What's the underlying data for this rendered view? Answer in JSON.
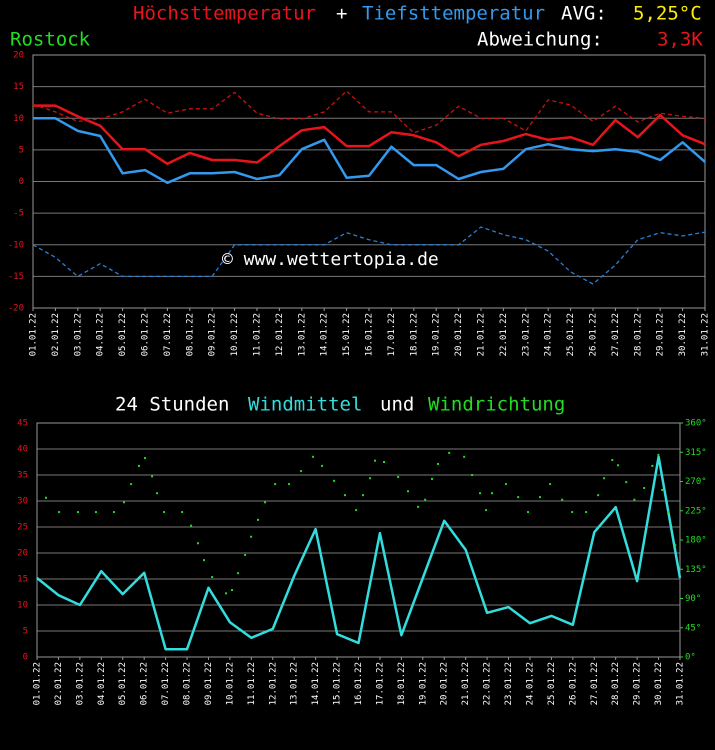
{
  "chart_data": [
    {
      "type": "line",
      "title": [
        "Höchsttemperatur",
        "+",
        "Tiefsttemperatur"
      ],
      "avg_label": "AVG:",
      "avg_value": "5,25°C",
      "location": "Rostock",
      "deviation_label": "Abweichung:",
      "deviation_value": "3,3K",
      "watermark": "© www.wettertopia.de",
      "categories": [
        "01.01.22",
        "02.01.22",
        "03.01.22",
        "04.01.22",
        "05.01.22",
        "06.01.22",
        "07.01.22",
        "08.01.22",
        "09.01.22",
        "10.01.22",
        "11.01.22",
        "12.01.22",
        "13.01.22",
        "14.01.22",
        "15.01.22",
        "16.01.22",
        "17.01.22",
        "18.01.22",
        "19.01.22",
        "20.01.22",
        "21.01.22",
        "22.01.22",
        "23.01.22",
        "24.01.22",
        "25.01.22",
        "26.01.22",
        "27.01.22",
        "28.01.22",
        "29.01.22",
        "30.01.22",
        "31.01.22"
      ],
      "series": [
        {
          "name": "Höchsttemperatur",
          "color": "#e8141c",
          "dashed": false,
          "values": [
            12,
            12,
            10.3,
            8.8,
            5.1,
            5.1,
            2.8,
            4.5,
            3.4,
            3.4,
            3.0,
            5.6,
            8.1,
            8.6,
            5.6,
            5.6,
            7.8,
            7.3,
            6.2,
            4.0,
            5.8,
            6.4,
            7.5,
            6.6,
            7.0,
            5.8,
            9.7,
            7.0,
            10.5,
            7.3,
            5.9
          ]
        },
        {
          "name": "Tiefsttemperatur",
          "color": "#3399ee",
          "dashed": false,
          "values": [
            10.0,
            10.0,
            8.0,
            7.2,
            1.3,
            1.8,
            -0.2,
            1.3,
            1.3,
            1.5,
            0.4,
            1.0,
            5.1,
            6.6,
            0.6,
            0.9,
            5.5,
            2.6,
            2.6,
            0.4,
            1.5,
            2.0,
            5.1,
            5.9,
            5.1,
            4.8,
            5.1,
            4.7,
            3.4,
            6.2,
            3.1
          ]
        },
        {
          "color": "#cc1111",
          "dashed": true,
          "values": [
            12.2,
            11,
            9.5,
            9.9,
            11,
            13,
            10.8,
            11.5,
            11.5,
            14.1,
            10.8,
            9.9,
            9.9,
            11,
            14.3,
            11,
            11,
            7.7,
            8.9,
            11.9,
            10,
            10,
            8.0,
            12.9,
            12.1,
            9.5,
            11.9,
            9.4,
            10.8,
            10.3,
            10
          ]
        },
        {
          "color": "#2a7fd4",
          "dashed": true,
          "values": [
            -10,
            -12,
            -15,
            -13,
            -15,
            -15,
            -15,
            -15,
            -15,
            -10,
            -10,
            -10,
            -10,
            -10,
            -8.1,
            -9.2,
            -10,
            -10,
            -10,
            -10,
            -7.2,
            -8.4,
            -9.2,
            -11,
            -14.3,
            -16.2,
            -13.2,
            -9.2,
            -8.1,
            -8.6,
            -8
          ]
        }
      ],
      "ylim": [
        -20,
        20
      ],
      "yticks": [
        20,
        15,
        10,
        5,
        0,
        -5,
        -10,
        -15,
        -20
      ],
      "grid": true
    },
    {
      "type": "line",
      "title": [
        "24 Stunden",
        "Windmittel",
        "und",
        "Windrichtung"
      ],
      "categories": [
        "01.01.22",
        "02.01.22",
        "03.01.22",
        "04.01.22",
        "05.01.22",
        "06.01.22",
        "07.01.22",
        "08.01.22",
        "09.01.22",
        "10.01.22",
        "11.01.22",
        "12.01.22",
        "13.01.22",
        "14.01.22",
        "15.01.22",
        "16.01.22",
        "17.01.22",
        "18.01.22",
        "19.01.22",
        "20.01.22",
        "21.01.22",
        "22.01.22",
        "23.01.22",
        "24.01.22",
        "25.01.22",
        "26.01.22",
        "27.01.22",
        "28.01.22",
        "29.01.22",
        "30.01.22",
        "31.01.22"
      ],
      "xlim": [
        1,
        31
      ],
      "series": [
        {
          "name": "Windmittel",
          "color": "#33dddd",
          "values": [
            15.2,
            11.9,
            10,
            16.5,
            12.1,
            16.2,
            1.5,
            1.5,
            13.3,
            6.7,
            3.7,
            5.4,
            15.6,
            24.6,
            4.4,
            2.7,
            23.8,
            4.2,
            15.2,
            26.2,
            20.6,
            8.5,
            9.6,
            6.5,
            7.9,
            6.2,
            24,
            28.8,
            14.6,
            38.5,
            15.2
          ]
        },
        {
          "name": "Windrichtung",
          "color": "#22dd22",
          "type": "scatter",
          "axis": "y2",
          "x": [
            1.42,
            2.03,
            2.91,
            3.75,
            4.59,
            5.06,
            5.39,
            5.76,
            6.04,
            6.37,
            6.6,
            6.93,
            7.77,
            8.19,
            8.51,
            8.79,
            9.17,
            9.82,
            10.1,
            10.38,
            10.71,
            10.99,
            11.31,
            11.64,
            12.11,
            12.76,
            13.32,
            13.88,
            14.3,
            14.86,
            15.37,
            15.89,
            16.21,
            16.54,
            16.77,
            17.19,
            17.85,
            18.31,
            18.78,
            19.11,
            19.43,
            19.71,
            20.23,
            20.93,
            21.3,
            21.67,
            21.95,
            22.23,
            22.88,
            23.45,
            23.91,
            24.47,
            24.94,
            25.5,
            25.97,
            26.62,
            27.18,
            27.46,
            27.84,
            28.11,
            28.49,
            28.87,
            29.33,
            29.71,
            29.99,
            30.17,
            30.45,
            30.78
          ],
          "values": [
            245,
            223,
            223,
            223,
            223,
            238,
            266,
            294,
            306,
            278,
            252,
            223,
            223,
            202,
            175,
            149,
            123,
            98,
            103,
            129,
            157,
            185,
            211,
            238,
            266,
            266,
            286,
            308,
            294,
            271,
            249,
            226,
            249,
            275,
            302,
            300,
            277,
            255,
            231,
            242,
            274,
            297,
            314,
            308,
            280,
            252,
            226,
            252,
            266,
            246,
            223,
            246,
            266,
            242,
            223,
            223,
            249,
            275,
            303,
            295,
            269,
            242,
            260,
            294,
            311,
            257,
            223,
            172
          ]
        }
      ],
      "ylim": [
        0,
        45
      ],
      "yticks": [
        45,
        40,
        35,
        30,
        25,
        20,
        15,
        10,
        5,
        0
      ],
      "y2lim": [
        0,
        360
      ],
      "y2ticks": [
        {
          "value": 360,
          "label": "360°"
        },
        {
          "value": 315,
          "label": "315°"
        },
        {
          "value": 270,
          "label": "270°"
        },
        {
          "value": 225,
          "label": "225°"
        },
        {
          "value": 180,
          "label": "180°"
        },
        {
          "value": 135,
          "label": "135°"
        },
        {
          "value": 90,
          "label": "90°"
        },
        {
          "value": 45,
          "label": "45°"
        },
        {
          "value": 0,
          "label": "0°"
        }
      ],
      "grid": true
    }
  ]
}
